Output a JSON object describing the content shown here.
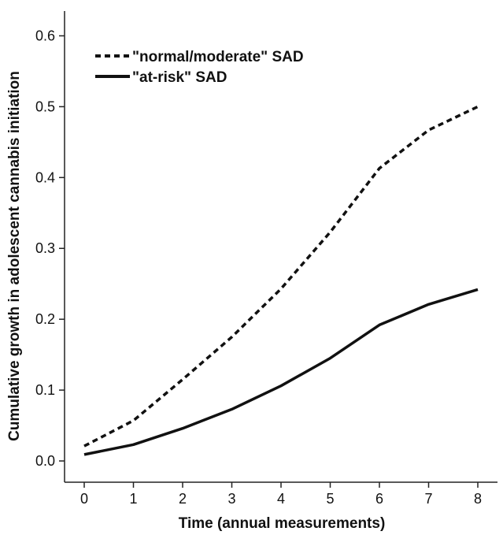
{
  "chart_data": {
    "type": "line",
    "xlabel": "Time (annual measurements)",
    "ylabel": "Cumulative growth in adolescent cannabis initiation",
    "x": [
      0,
      1,
      2,
      3,
      4,
      5,
      6,
      7,
      8
    ],
    "xlim": [
      -0.4,
      8.4
    ],
    "ylim": [
      -0.03,
      0.635
    ],
    "xticks": [
      0,
      1,
      2,
      3,
      4,
      5,
      6,
      7,
      8
    ],
    "yticks": [
      0.0,
      0.1,
      0.2,
      0.3,
      0.4,
      0.5,
      0.6
    ],
    "ytick_labels": [
      "0.0",
      "0.1",
      "0.2",
      "0.3",
      "0.4",
      "0.5",
      "0.6"
    ],
    "grid": false,
    "legend_position": "top-left",
    "series": [
      {
        "name": "\"normal/moderate\" SAD",
        "style": "dashed",
        "color": "#111111",
        "values": [
          0.021,
          0.057,
          0.115,
          0.175,
          0.243,
          0.323,
          0.413,
          0.467,
          0.5
        ]
      },
      {
        "name": "\"at-risk\" SAD",
        "style": "solid",
        "color": "#111111",
        "values": [
          0.009,
          0.023,
          0.046,
          0.073,
          0.106,
          0.145,
          0.192,
          0.221,
          0.242
        ]
      }
    ]
  }
}
